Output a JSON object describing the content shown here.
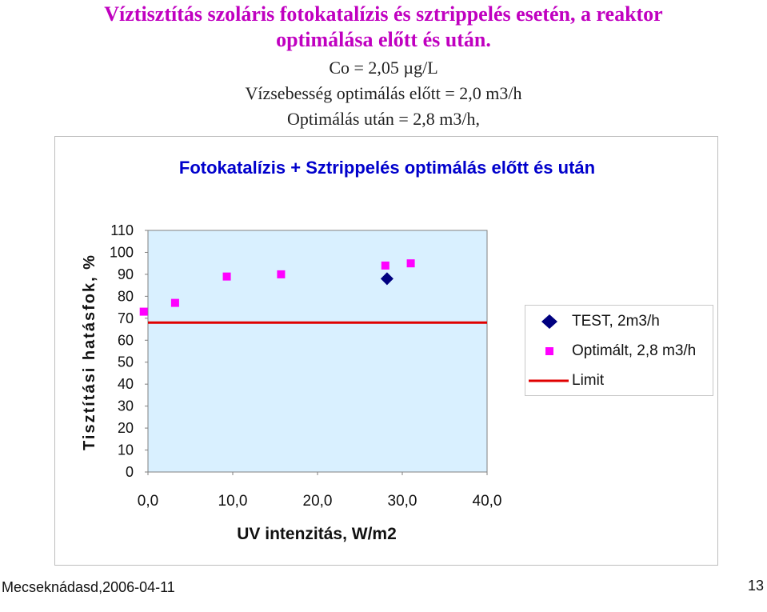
{
  "slide": {
    "title_line1": "Víztisztítás szoláris fotokatalízis és sztrippelés esetén, a reaktor",
    "title_line2": "optimálása előtt és után.",
    "sub1": "Co = 2,05 µg/L",
    "sub2": "Vízsebesség optimálás előtt = 2,0 m3/h",
    "sub3": "Optimálás után = 2,8 m3/h,"
  },
  "footer": {
    "left": "Mecseknádasd,2006-04-11",
    "page_number": "13"
  },
  "colors": {
    "plot_bg": "#d9f0ff",
    "test": "#000080",
    "optimized": "#ff00ff",
    "limit": "#e00000",
    "chart_title": "#0000cc"
  },
  "chart_data": {
    "type": "scatter",
    "title": "Fotokatalízis + Sztrippelés optimálás előtt és után",
    "xlabel": "UV intenzitás, W/m2",
    "ylabel": "Tisztítási hatásfok, %",
    "xlim": [
      0,
      40
    ],
    "ylim": [
      0,
      110
    ],
    "x_ticks": [
      "0,0",
      "10,0",
      "20,0",
      "30,0",
      "40,0"
    ],
    "y_ticks": [
      "0",
      "10",
      "20",
      "30",
      "40",
      "50",
      "60",
      "70",
      "80",
      "90",
      "100",
      "110"
    ],
    "grid": false,
    "legend_position": "right",
    "series": [
      {
        "name": "TEST, 2m3/h",
        "marker": "diamond",
        "color": "#000080",
        "points": [
          {
            "x": 28.2,
            "y": 88
          }
        ]
      },
      {
        "name": "Optimált, 2,8 m3/h",
        "marker": "square",
        "color": "#ff00ff",
        "points": [
          {
            "x": -0.5,
            "y": 73
          },
          {
            "x": 3.2,
            "y": 77
          },
          {
            "x": 9.3,
            "y": 89
          },
          {
            "x": 15.7,
            "y": 90
          },
          {
            "x": 28.0,
            "y": 94
          },
          {
            "x": 31.0,
            "y": 95
          }
        ]
      },
      {
        "name": "Limit",
        "marker": "line",
        "color": "#e00000",
        "points": [
          {
            "x": 0,
            "y": 68
          },
          {
            "x": 40,
            "y": 68
          }
        ]
      }
    ]
  }
}
